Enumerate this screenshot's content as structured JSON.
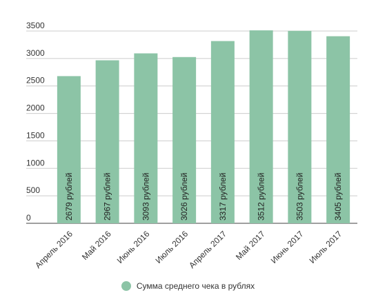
{
  "chart_data": {
    "type": "bar",
    "categories": [
      "Апрель 2016",
      "Май 2016",
      "Июнь 2016",
      "Июль 2016",
      "Апрель 2017",
      "Май 2017",
      "Июнь 2017",
      "Июль 2017"
    ],
    "series": [
      {
        "name": "Сумма среднего чека в рублях",
        "values": [
          2679,
          2967,
          3093,
          3026,
          3317,
          3512,
          3503,
          3405
        ],
        "data_labels": [
          "2679 рублей",
          "2967 рублей",
          "3093 рублей",
          "3026 рублей",
          "3317 рублей",
          "3512 рублей",
          "3503 рублей",
          "3405 рублей"
        ]
      }
    ],
    "y_ticks": [
      "0",
      "500",
      "1000",
      "1500",
      "2000",
      "2500",
      "3000",
      "3500"
    ],
    "ylim": [
      0,
      3500
    ],
    "grid": true,
    "legend_position": "bottom",
    "bar_color": "#8cc4a6",
    "grid_color": "#cccccc"
  }
}
